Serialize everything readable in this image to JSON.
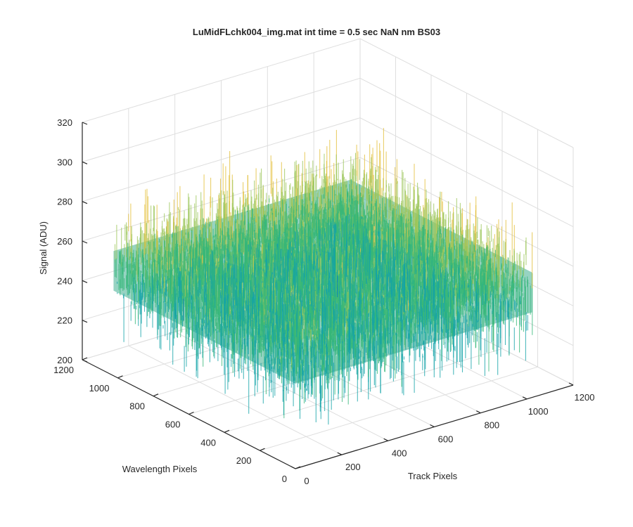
{
  "chart_data": {
    "type": "surface",
    "title": "LuMidFLchk004_img.mat int time = 0.5 sec  NaN nm BS03",
    "xlabel": "Track Pixels",
    "ylabel": "Wavelength Pixels",
    "zlabel": "Signal (ADU)",
    "xlim": [
      0,
      1200
    ],
    "ylim": [
      0,
      1200
    ],
    "zlim": [
      200,
      320
    ],
    "xticks": [
      "0",
      "200",
      "400",
      "600",
      "800",
      "1000",
      "1200"
    ],
    "yticks": [
      "0",
      "200",
      "400",
      "600",
      "800",
      "1000",
      "1200"
    ],
    "zticks": [
      "200",
      "220",
      "240",
      "260",
      "280",
      "300",
      "320"
    ],
    "data_extent": {
      "x": [
        0,
        1024
      ],
      "y": [
        0,
        1024
      ]
    },
    "signal_mean": 255,
    "signal_noise_range": [
      215,
      300
    ],
    "grid": true,
    "colormap": [
      "#0c7fbf",
      "#13a3a8",
      "#35b779",
      "#9cc65a",
      "#e3bf3a"
    ]
  }
}
